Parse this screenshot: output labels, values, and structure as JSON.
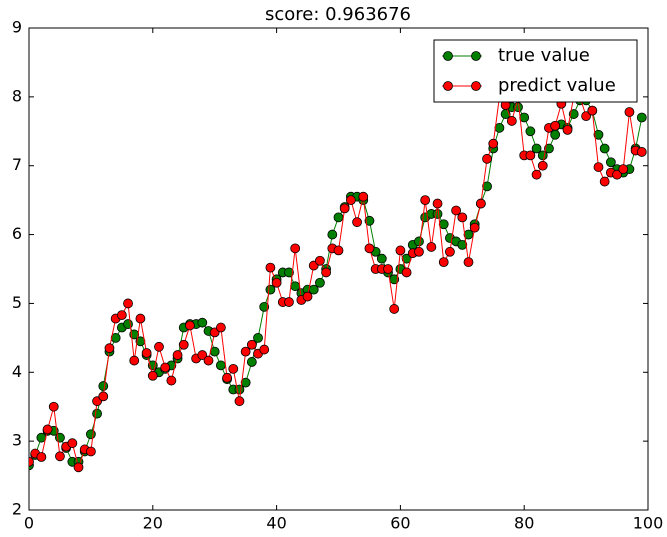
{
  "chart_data": {
    "type": "line",
    "title": "score: 0.963676",
    "x": [
      0,
      1,
      2,
      3,
      4,
      5,
      6,
      7,
      8,
      9,
      10,
      11,
      12,
      13,
      14,
      15,
      16,
      17,
      18,
      19,
      20,
      21,
      22,
      23,
      24,
      25,
      26,
      27,
      28,
      29,
      30,
      31,
      32,
      33,
      34,
      35,
      36,
      37,
      38,
      39,
      40,
      41,
      42,
      43,
      44,
      45,
      46,
      47,
      48,
      49,
      50,
      51,
      52,
      53,
      54,
      55,
      56,
      57,
      58,
      59,
      60,
      61,
      62,
      63,
      64,
      65,
      66,
      67,
      68,
      69,
      70,
      71,
      72,
      73,
      74,
      75,
      76,
      77,
      78,
      79,
      80,
      81,
      82,
      83,
      84,
      85,
      86,
      87,
      88,
      89,
      90,
      91,
      92,
      93,
      94,
      95,
      96,
      97,
      98,
      99
    ],
    "series": [
      {
        "name": "true value",
        "color": "#007f00",
        "values": [
          2.65,
          2.8,
          3.05,
          3.15,
          3.15,
          3.05,
          2.9,
          2.7,
          2.7,
          2.85,
          3.1,
          3.4,
          3.8,
          4.3,
          4.5,
          4.65,
          4.7,
          4.55,
          4.45,
          4.25,
          4.1,
          4.0,
          4.05,
          4.1,
          4.2,
          4.65,
          4.7,
          4.7,
          4.72,
          4.6,
          4.3,
          4.1,
          3.9,
          3.75,
          3.75,
          3.85,
          4.15,
          4.5,
          4.95,
          5.2,
          5.35,
          5.45,
          5.45,
          5.25,
          5.15,
          5.2,
          5.2,
          5.3,
          5.5,
          6.0,
          6.25,
          6.4,
          6.55,
          6.55,
          6.5,
          6.2,
          5.75,
          5.65,
          5.45,
          5.35,
          5.5,
          5.65,
          5.85,
          5.9,
          6.25,
          6.3,
          6.3,
          6.15,
          5.95,
          5.9,
          5.85,
          6.0,
          6.15,
          6.45,
          6.7,
          7.25,
          7.55,
          7.75,
          7.85,
          7.85,
          7.7,
          7.5,
          7.25,
          7.15,
          7.25,
          7.45,
          7.6,
          7.55,
          7.75,
          7.95,
          7.95,
          7.8,
          7.45,
          7.25,
          7.05,
          6.95,
          6.9,
          6.95,
          7.25,
          7.7
        ]
      },
      {
        "name": "predict value",
        "color": "#ff0000",
        "values": [
          2.7,
          2.82,
          2.77,
          3.17,
          3.5,
          2.78,
          2.92,
          2.97,
          2.62,
          2.88,
          2.85,
          3.58,
          3.65,
          4.35,
          4.78,
          4.83,
          5.0,
          4.17,
          4.78,
          4.28,
          3.95,
          4.37,
          4.07,
          3.88,
          4.25,
          4.4,
          4.68,
          4.2,
          4.25,
          4.17,
          4.58,
          4.65,
          3.92,
          4.05,
          3.58,
          4.3,
          4.4,
          4.27,
          4.33,
          5.52,
          5.3,
          5.02,
          5.02,
          5.8,
          5.05,
          5.1,
          5.55,
          5.62,
          5.45,
          5.8,
          5.77,
          6.38,
          6.5,
          6.18,
          6.55,
          5.8,
          5.5,
          5.5,
          5.5,
          4.92,
          5.77,
          5.45,
          5.73,
          5.75,
          6.5,
          5.82,
          6.45,
          5.6,
          5.75,
          6.35,
          6.25,
          5.6,
          6.1,
          6.45,
          7.1,
          7.32,
          8.0,
          7.88,
          7.65,
          7.98,
          7.15,
          7.15,
          6.87,
          7.0,
          7.55,
          7.58,
          7.9,
          7.52,
          8.0,
          8.0,
          7.72,
          7.8,
          6.98,
          6.77,
          6.9,
          6.87,
          6.95,
          7.78,
          7.22,
          7.2
        ]
      }
    ],
    "xlim": [
      0,
      100
    ],
    "xticks": [
      0,
      20,
      40,
      60,
      80,
      100
    ],
    "ylim": [
      2,
      9
    ],
    "yticks": [
      2,
      3,
      4,
      5,
      6,
      7,
      8,
      9
    ],
    "legend": "upper right"
  }
}
